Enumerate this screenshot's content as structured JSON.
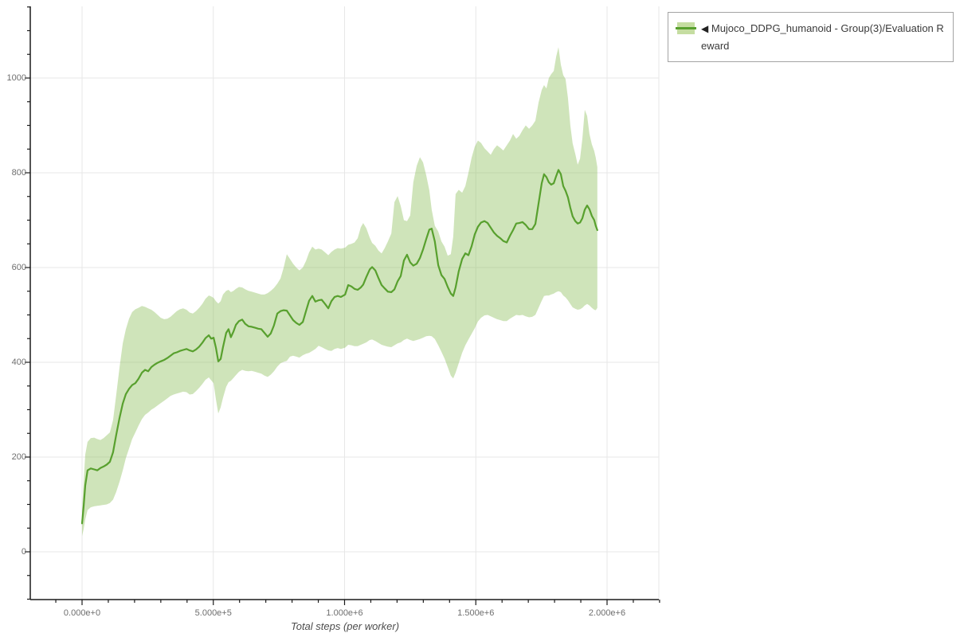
{
  "legend": {
    "collapse_icon": "◀",
    "label": "Mujoco_DDPG_humanoid - Group(3)/Evaluation Reward"
  },
  "chart_data": {
    "type": "line",
    "title": "",
    "xlabel": "Total steps (per worker)",
    "ylabel": "",
    "grid": true,
    "legend_position": "top-right",
    "x_range": [
      -200000,
      2200000
    ],
    "y_range": [
      -100,
      1150
    ],
    "x_ticks": [
      0,
      500000,
      1000000,
      1500000,
      2000000
    ],
    "x_tick_labels": [
      "0.000e+0",
      "5.000e+5",
      "1.000e+6",
      "1.500e+6",
      "2.000e+6"
    ],
    "y_ticks": [
      0,
      200,
      400,
      600,
      800,
      1000
    ],
    "y_tick_labels": [
      "0",
      "200",
      "400",
      "600",
      "800",
      "1000"
    ],
    "colors": {
      "line": "#58a02e",
      "band": "#8dbf5b",
      "grid": "#e7e7e7",
      "axis": "#1a1a1a",
      "tick_text": "#6e6e6e"
    },
    "series": [
      {
        "name": "Mujoco_DDPG_humanoid - Group(3)/Evaluation Reward",
        "color": "#58a02e",
        "band_color": "#8dbf5b",
        "x": [
          0,
          6000,
          12000,
          21000,
          33000,
          46000,
          58000,
          70000,
          82000,
          94000,
          106000,
          118000,
          130000,
          143000,
          155000,
          167000,
          179000,
          191000,
          203000,
          215000,
          228000,
          240000,
          252000,
          264000,
          276000,
          288000,
          300000,
          313000,
          325000,
          337000,
          349000,
          361000,
          373000,
          385000,
          398000,
          410000,
          422000,
          434000,
          446000,
          458000,
          470000,
          483000,
          492000,
          501000,
          510000,
          519000,
          528000,
          537000,
          549000,
          558000,
          567000,
          577000,
          586000,
          598000,
          610000,
          622000,
          634000,
          646000,
          659000,
          671000,
          683000,
          695000,
          707000,
          719000,
          731000,
          744000,
          756000,
          768000,
          780000,
          792000,
          804000,
          816000,
          828000,
          841000,
          853000,
          865000,
          877000,
          889000,
          901000,
          913000,
          926000,
          938000,
          950000,
          962000,
          974000,
          986000,
          1002000,
          1014000,
          1026000,
          1038000,
          1050000,
          1062000,
          1071000,
          1083000,
          1096000,
          1105000,
          1117000,
          1129000,
          1141000,
          1153000,
          1165000,
          1178000,
          1190000,
          1202000,
          1214000,
          1226000,
          1238000,
          1250000,
          1262000,
          1275000,
          1287000,
          1299000,
          1311000,
          1323000,
          1332000,
          1344000,
          1357000,
          1369000,
          1381000,
          1393000,
          1405000,
          1414000,
          1423000,
          1435000,
          1448000,
          1460000,
          1472000,
          1484000,
          1496000,
          1508000,
          1520000,
          1533000,
          1545000,
          1557000,
          1569000,
          1581000,
          1593000,
          1605000,
          1618000,
          1630000,
          1642000,
          1654000,
          1666000,
          1678000,
          1690000,
          1703000,
          1715000,
          1727000,
          1739000,
          1751000,
          1760000,
          1769000,
          1778000,
          1787000,
          1797000,
          1806000,
          1815000,
          1824000,
          1833000,
          1842000,
          1851000,
          1860000,
          1869000,
          1879000,
          1888000,
          1897000,
          1906000,
          1915000,
          1924000,
          1933000,
          1942000,
          1951000,
          1957000,
          1963000
        ],
        "mean": [
          60,
          96,
          140,
          172,
          176,
          174,
          172,
          177,
          180,
          184,
          190,
          210,
          246,
          283,
          313,
          333,
          344,
          352,
          356,
          365,
          378,
          384,
          381,
          390,
          395,
          399,
          402,
          405,
          409,
          414,
          419,
          421,
          424,
          426,
          428,
          425,
          423,
          427,
          433,
          441,
          451,
          457,
          450,
          452,
          431,
          402,
          407,
          432,
          462,
          470,
          453,
          465,
          479,
          487,
          490,
          481,
          476,
          475,
          473,
          471,
          470,
          462,
          454,
          461,
          478,
          503,
          508,
          510,
          509,
          499,
          489,
          483,
          479,
          485,
          508,
          530,
          540,
          528,
          531,
          532,
          523,
          514,
          529,
          538,
          540,
          538,
          543,
          563,
          560,
          555,
          553,
          558,
          564,
          580,
          596,
          601,
          594,
          578,
          563,
          556,
          549,
          548,
          554,
          571,
          582,
          615,
          627,
          611,
          604,
          608,
          620,
          638,
          660,
          680,
          682,
          655,
          605,
          584,
          576,
          559,
          545,
          540,
          558,
          592,
          618,
          630,
          626,
          645,
          670,
          686,
          695,
          698,
          694,
          684,
          674,
          667,
          662,
          656,
          653,
          667,
          679,
          693,
          694,
          696,
          690,
          681,
          681,
          692,
          735,
          778,
          797,
          791,
          780,
          775,
          778,
          793,
          806,
          797,
          772,
          762,
          748,
          726,
          708,
          698,
          693,
          695,
          704,
          722,
          731,
          723,
          709,
          700,
          688,
          679
        ],
        "lower": [
          33,
          48,
          68,
          88,
          94,
          96,
          97,
          98,
          99,
          100,
          103,
          110,
          126,
          148,
          172,
          198,
          218,
          238,
          252,
          266,
          280,
          289,
          294,
          300,
          304,
          309,
          314,
          319,
          324,
          329,
          332,
          334,
          336,
          338,
          337,
          332,
          333,
          339,
          346,
          354,
          363,
          368,
          362,
          356,
          322,
          292,
          305,
          325,
          348,
          358,
          361,
          367,
          373,
          380,
          384,
          382,
          381,
          382,
          380,
          378,
          376,
          372,
          369,
          374,
          381,
          391,
          398,
          401,
          403,
          412,
          414,
          412,
          410,
          415,
          418,
          420,
          424,
          428,
          435,
          432,
          428,
          425,
          424,
          428,
          430,
          428,
          431,
          437,
          436,
          434,
          434,
          437,
          439,
          442,
          447,
          448,
          445,
          441,
          437,
          435,
          433,
          432,
          436,
          440,
          442,
          447,
          450,
          447,
          445,
          447,
          449,
          452,
          455,
          456,
          455,
          449,
          436,
          422,
          408,
          390,
          372,
          366,
          378,
          398,
          420,
          436,
          448,
          460,
          472,
          486,
          494,
          499,
          500,
          497,
          494,
          491,
          489,
          487,
          487,
          492,
          496,
          500,
          499,
          500,
          497,
          495,
          496,
          500,
          515,
          530,
          540,
          541,
          541,
          543,
          545,
          548,
          550,
          548,
          541,
          537,
          531,
          523,
          516,
          513,
          511,
          512,
          515,
          520,
          523,
          520,
          515,
          511,
          510,
          515
        ],
        "upper": [
          88,
          150,
          205,
          232,
          240,
          241,
          238,
          236,
          240,
          246,
          252,
          278,
          330,
          390,
          440,
          470,
          492,
          506,
          512,
          515,
          519,
          517,
          514,
          511,
          506,
          500,
          494,
          491,
          492,
          496,
          502,
          508,
          512,
          514,
          511,
          505,
          503,
          508,
          515,
          523,
          534,
          541,
          539,
          536,
          529,
          524,
          529,
          543,
          551,
          553,
          548,
          551,
          555,
          559,
          558,
          554,
          551,
          549,
          547,
          545,
          543,
          543,
          546,
          551,
          557,
          566,
          577,
          600,
          628,
          618,
          608,
          600,
          594,
          600,
          614,
          632,
          644,
          638,
          640,
          638,
          632,
          626,
          633,
          638,
          641,
          640,
          642,
          648,
          650,
          653,
          662,
          685,
          694,
          683,
          663,
          652,
          646,
          636,
          630,
          641,
          655,
          672,
          738,
          751,
          730,
          700,
          698,
          710,
          780,
          815,
          833,
          822,
          795,
          763,
          722,
          688,
          676,
          655,
          644,
          625,
          628,
          665,
          755,
          764,
          758,
          772,
          800,
          832,
          855,
          868,
          863,
          852,
          845,
          838,
          850,
          858,
          853,
          847,
          858,
          868,
          882,
          872,
          878,
          890,
          900,
          893,
          900,
          910,
          948,
          975,
          985,
          978,
          1000,
          1008,
          1015,
          1045,
          1065,
          1028,
          1006,
          998,
          958,
          900,
          862,
          840,
          817,
          830,
          872,
          933,
          920,
          882,
          860,
          846,
          832,
          812
        ]
      }
    ]
  }
}
